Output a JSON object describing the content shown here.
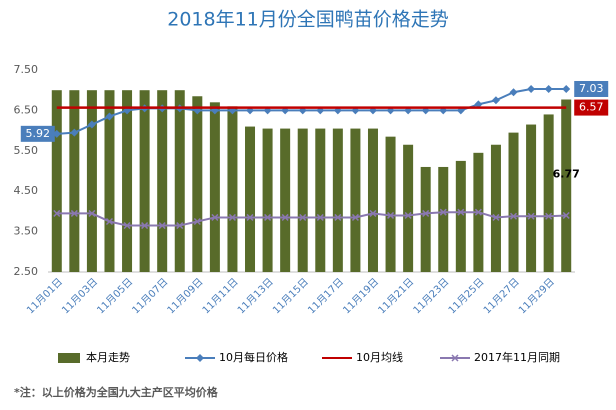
{
  "chart_data": {
    "type": "bar",
    "title": "2018年11月份全国鸭苗价格走势",
    "footnote": "*注：以上价格为全国九大主产区平均价格",
    "categories": [
      "11月01日",
      null,
      "11月03日",
      null,
      "11月05日",
      null,
      "11月07日",
      null,
      "11月09日",
      null,
      "11月11日",
      null,
      "11月13日",
      null,
      "11月15日",
      null,
      "11月17日",
      null,
      "11月19日",
      null,
      "11月21日",
      null,
      "11月23日",
      null,
      "11月25日",
      null,
      "11月27日",
      null,
      "11月29日",
      null
    ],
    "series": [
      {
        "name": "本月走势",
        "type": "bar",
        "color": "#586b2a",
        "values": [
          7.0,
          7.0,
          7.0,
          7.0,
          7.0,
          7.0,
          7.0,
          7.0,
          6.85,
          6.7,
          6.6,
          6.1,
          6.05,
          6.05,
          6.05,
          6.05,
          6.05,
          6.05,
          6.05,
          5.85,
          5.65,
          5.1,
          5.1,
          5.25,
          5.45,
          5.65,
          5.95,
          6.15,
          6.4,
          6.77
        ],
        "labeled_points": [
          29
        ],
        "label_box": false
      },
      {
        "name": "10月每日价格",
        "type": "line",
        "color": "#4a7ebb",
        "marker": "diamond",
        "values": [
          5.92,
          5.95,
          6.15,
          6.35,
          6.5,
          6.55,
          6.55,
          6.55,
          6.5,
          6.5,
          6.5,
          6.5,
          6.5,
          6.5,
          6.5,
          6.5,
          6.5,
          6.5,
          6.5,
          6.5,
          6.5,
          6.5,
          6.5,
          6.5,
          6.65,
          6.75,
          6.95,
          7.03,
          7.03,
          7.03
        ],
        "labeled_points": [
          0,
          29
        ],
        "label_box": true
      },
      {
        "name": "10月均线",
        "type": "line",
        "color": "#c00000",
        "marker": null,
        "values": [
          6.57,
          6.57,
          6.57,
          6.57,
          6.57,
          6.57,
          6.57,
          6.57,
          6.57,
          6.57,
          6.57,
          6.57,
          6.57,
          6.57,
          6.57,
          6.57,
          6.57,
          6.57,
          6.57,
          6.57,
          6.57,
          6.57,
          6.57,
          6.57,
          6.57,
          6.57,
          6.57,
          6.57,
          6.57,
          6.57
        ],
        "labeled_points": [
          29
        ],
        "label_box": true
      },
      {
        "name": "2017年11月同期",
        "type": "line",
        "color": "#8a78b0",
        "marker": "x",
        "values": [
          3.95,
          3.95,
          3.95,
          3.75,
          3.65,
          3.65,
          3.65,
          3.65,
          3.75,
          3.85,
          3.85,
          3.85,
          3.85,
          3.85,
          3.85,
          3.85,
          3.85,
          3.85,
          3.95,
          3.9,
          3.9,
          3.95,
          3.98,
          3.98,
          3.98,
          3.85,
          3.88,
          3.88,
          3.88,
          3.9
        ],
        "labeled_points": [],
        "label_box": false
      }
    ],
    "ylim": [
      2.5,
      7.5
    ],
    "yticks": [
      {
        "value": 2.5,
        "label": "2.50"
      },
      {
        "value": 3.5,
        "label": "3.50"
      },
      {
        "value": 4.5,
        "label": "4.50"
      },
      {
        "value": 5.5,
        "label": "5.50"
      },
      {
        "value": 6.5,
        "label": "6.50"
      },
      {
        "value": 7.5,
        "label": "7.50"
      }
    ],
    "grid": false,
    "legend": "bottom"
  }
}
